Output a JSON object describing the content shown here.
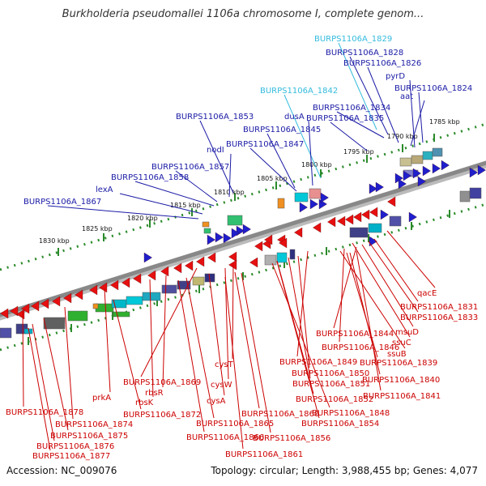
{
  "title": "Burkholderia pseudomallei 1106a chromosome I, complete genom...",
  "accession": "Accession: NC_009076",
  "topology": "Topology: circular; Length: 3,988,455 bp; Genes: 4,077",
  "colors": {
    "backbone": "#888888",
    "tick": "#2a8a2a",
    "forward_label": "#1a1aa6",
    "highlight_label": "#33bbdd",
    "reverse_label": "#cc0000",
    "forward_gene": "#1f1fcc",
    "reverse_gene": "#e61010"
  },
  "scale_labels": [
    "1785 kbp",
    "1790 kbp",
    "1795 kbp",
    "1800 kbp",
    "1805 kbp",
    "1810 kbp",
    "1815 kbp",
    "1820 kbp",
    "1825 kbp",
    "1830 kbp"
  ],
  "top_labels": [
    {
      "text": "BURPS1106A_1829",
      "highlight": true
    },
    {
      "text": "BURPS1106A_1828",
      "highlight": false
    },
    {
      "text": "BURPS1106A_1826",
      "highlight": false
    },
    {
      "text": "pyrD",
      "highlight": false
    },
    {
      "text": "BURPS1106A_1842",
      "highlight": true
    },
    {
      "text": "BURPS1106A_1824",
      "highlight": false
    },
    {
      "text": "aat",
      "highlight": false
    },
    {
      "text": "BURPS1106A_1834",
      "highlight": false
    },
    {
      "text": "BURPS1106A_1853",
      "highlight": false
    },
    {
      "text": "dusA",
      "highlight": false
    },
    {
      "text": "BURPS1106A_1835",
      "highlight": false
    },
    {
      "text": "BURPS1106A_1845",
      "highlight": false
    },
    {
      "text": "nodI",
      "highlight": false
    },
    {
      "text": "BURPS1106A_1847",
      "highlight": false
    },
    {
      "text": "BURPS1106A_1857",
      "highlight": false
    },
    {
      "text": "BURPS1106A_1858",
      "highlight": false
    },
    {
      "text": "lexA",
      "highlight": false
    },
    {
      "text": "BURPS1106A_1867",
      "highlight": false
    }
  ],
  "bottom_labels": [
    "qacE",
    "BURPS1106A_1831",
    "BURPS1106A_1833",
    "msuD",
    "BURPS1106A_1844",
    "ssuC",
    "BURPS1106A_1846",
    "ssuB",
    "BURPS1106A_1849",
    "BURPS1106A_1839",
    "BURPS1106A_1850",
    "BURPS1106A_1840",
    "BURPS1106A_1851",
    "cysT",
    "BURPS1106A_1841",
    "BURPS1106A_1869",
    "cysW",
    "rbsR",
    "BURPS1106A_1852",
    "cysA",
    "rbsK",
    "BURPS1106A_1848",
    "prkA",
    "BURPS1106A_1872",
    "BURPS1106A_1860",
    "BURPS1106A_1854",
    "BURPS1106A_1878",
    "BURPS1106A_1865",
    "BURPS1106A_1874",
    "BURPS1106A_1866",
    "BURPS1106A_1875",
    "BURPS1106A_1856",
    "BURPS1106A_1876",
    "BURPS1106A_1861",
    "BURPS1106A_1877"
  ]
}
